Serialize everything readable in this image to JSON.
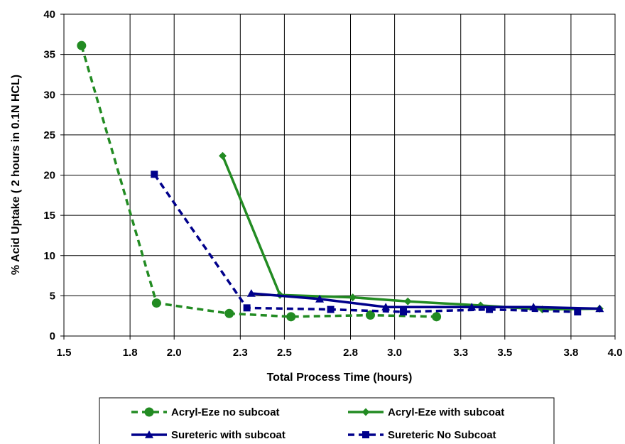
{
  "chart_data": {
    "type": "line",
    "xlabel": "Total Process Time (hours)",
    "ylabel": "% Acid Uptake ( 2 hours in 0.1N HCL)",
    "xlim": [
      1.5,
      4.0
    ],
    "ylim": [
      0,
      40
    ],
    "x_ticks": [
      1.5,
      1.8,
      2.0,
      2.3,
      2.5,
      2.8,
      3.0,
      3.3,
      3.5,
      3.8,
      4.0
    ],
    "x_tick_labels": [
      "1.5",
      "1.8",
      "2.0",
      "2.3",
      "2.5",
      "2.8",
      "3.0",
      "3.3",
      "3.5",
      "3.8",
      "4.0"
    ],
    "y_ticks": [
      0,
      5,
      10,
      15,
      20,
      25,
      30,
      35,
      40
    ],
    "y_tick_labels": [
      "0",
      "5",
      "10",
      "15",
      "20",
      "25",
      "30",
      "35",
      "40"
    ],
    "grid": true,
    "legend_position": "bottom",
    "series": [
      {
        "name": "Acryl-Eze no subcoat",
        "color": "#228b22",
        "dash": "dashed",
        "marker": "circle",
        "points": [
          [
            1.58,
            36.1
          ],
          [
            1.92,
            4.1
          ],
          [
            2.25,
            2.8
          ],
          [
            2.53,
            2.4
          ],
          [
            2.89,
            2.6
          ],
          [
            3.19,
            2.4
          ]
        ]
      },
      {
        "name": "Acryl-Eze with subcoat",
        "color": "#228b22",
        "dash": "solid",
        "marker": "diamond",
        "points": [
          [
            2.22,
            22.4
          ],
          [
            2.48,
            5.1
          ],
          [
            2.81,
            4.8
          ],
          [
            3.06,
            4.3
          ],
          [
            3.39,
            3.8
          ],
          [
            3.67,
            3.3
          ],
          [
            3.93,
            3.4
          ]
        ]
      },
      {
        "name": "Sureteric with subcoat",
        "color": "#00008b",
        "dash": "solid",
        "marker": "triangle",
        "points": [
          [
            2.35,
            5.3
          ],
          [
            2.66,
            4.6
          ],
          [
            2.96,
            3.6
          ],
          [
            3.35,
            3.6
          ],
          [
            3.63,
            3.6
          ],
          [
            3.93,
            3.4
          ]
        ]
      },
      {
        "name": "Sureteric No Subcoat",
        "color": "#00008b",
        "dash": "dashed",
        "marker": "square",
        "points": [
          [
            1.91,
            20.1
          ],
          [
            2.33,
            3.5
          ],
          [
            2.71,
            3.3
          ],
          [
            3.04,
            3.0
          ],
          [
            3.43,
            3.3
          ],
          [
            3.83,
            3.0
          ]
        ]
      }
    ]
  }
}
